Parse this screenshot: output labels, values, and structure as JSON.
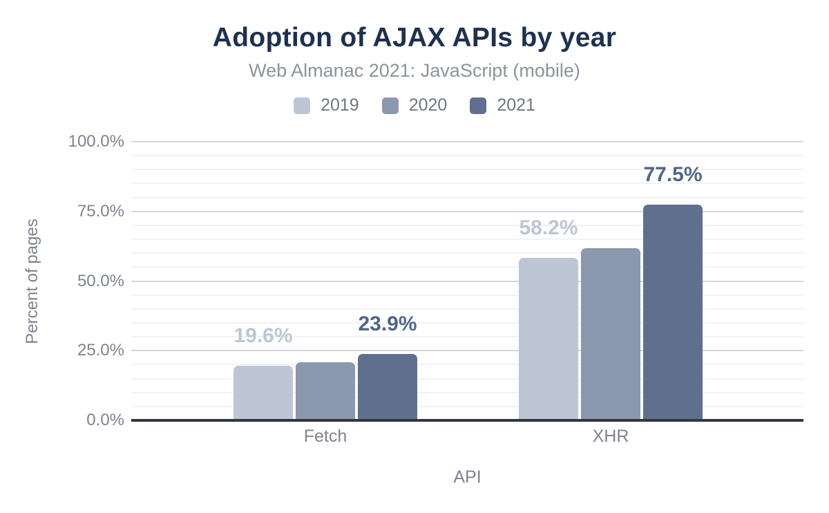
{
  "page": {
    "background": "#ffffff"
  },
  "colors": {
    "title": "#1d3150",
    "subtitle": "#8d939b",
    "axis_text": "#7d8390",
    "legend_text": "#6f7684",
    "axis_line": "#32363f",
    "gridline_major": "#d3d6dd",
    "gridline_minor": "#f1f2f5"
  },
  "chart_data": {
    "type": "bar",
    "title": "Adoption of AJAX APIs by year",
    "subtitle": "Web Almanac 2021: JavaScript (mobile)",
    "xlabel": "API",
    "ylabel": "Percent of pages",
    "categories": [
      "Fetch",
      "XHR"
    ],
    "series": [
      {
        "name": "2019",
        "color": "#bdc6d5",
        "label_color": "#bdc6d5",
        "values": [
          19.6,
          58.2
        ],
        "value_labels": [
          "19.6%",
          "58.2%"
        ]
      },
      {
        "name": "2020",
        "color": "#8c98ae",
        "label_color": null,
        "values": [
          20.8,
          61.7
        ],
        "value_labels": [
          null,
          null
        ]
      },
      {
        "name": "2021",
        "color": "#5e708e",
        "label_color": "#51658a",
        "values": [
          23.9,
          77.5
        ],
        "value_labels": [
          "23.9%",
          "77.5%"
        ]
      }
    ],
    "ylim": [
      0,
      100
    ],
    "ytick_values": [
      0,
      25,
      50,
      75,
      100
    ],
    "ytick_labels": [
      "0.0%",
      "25.0%",
      "50.0%",
      "75.0%",
      "100.0%"
    ],
    "grid": {
      "show": true,
      "minor_step": 5,
      "major_step": 25
    },
    "legend_position": "top",
    "legend_entries": [
      "2019",
      "2020",
      "2021"
    ]
  }
}
